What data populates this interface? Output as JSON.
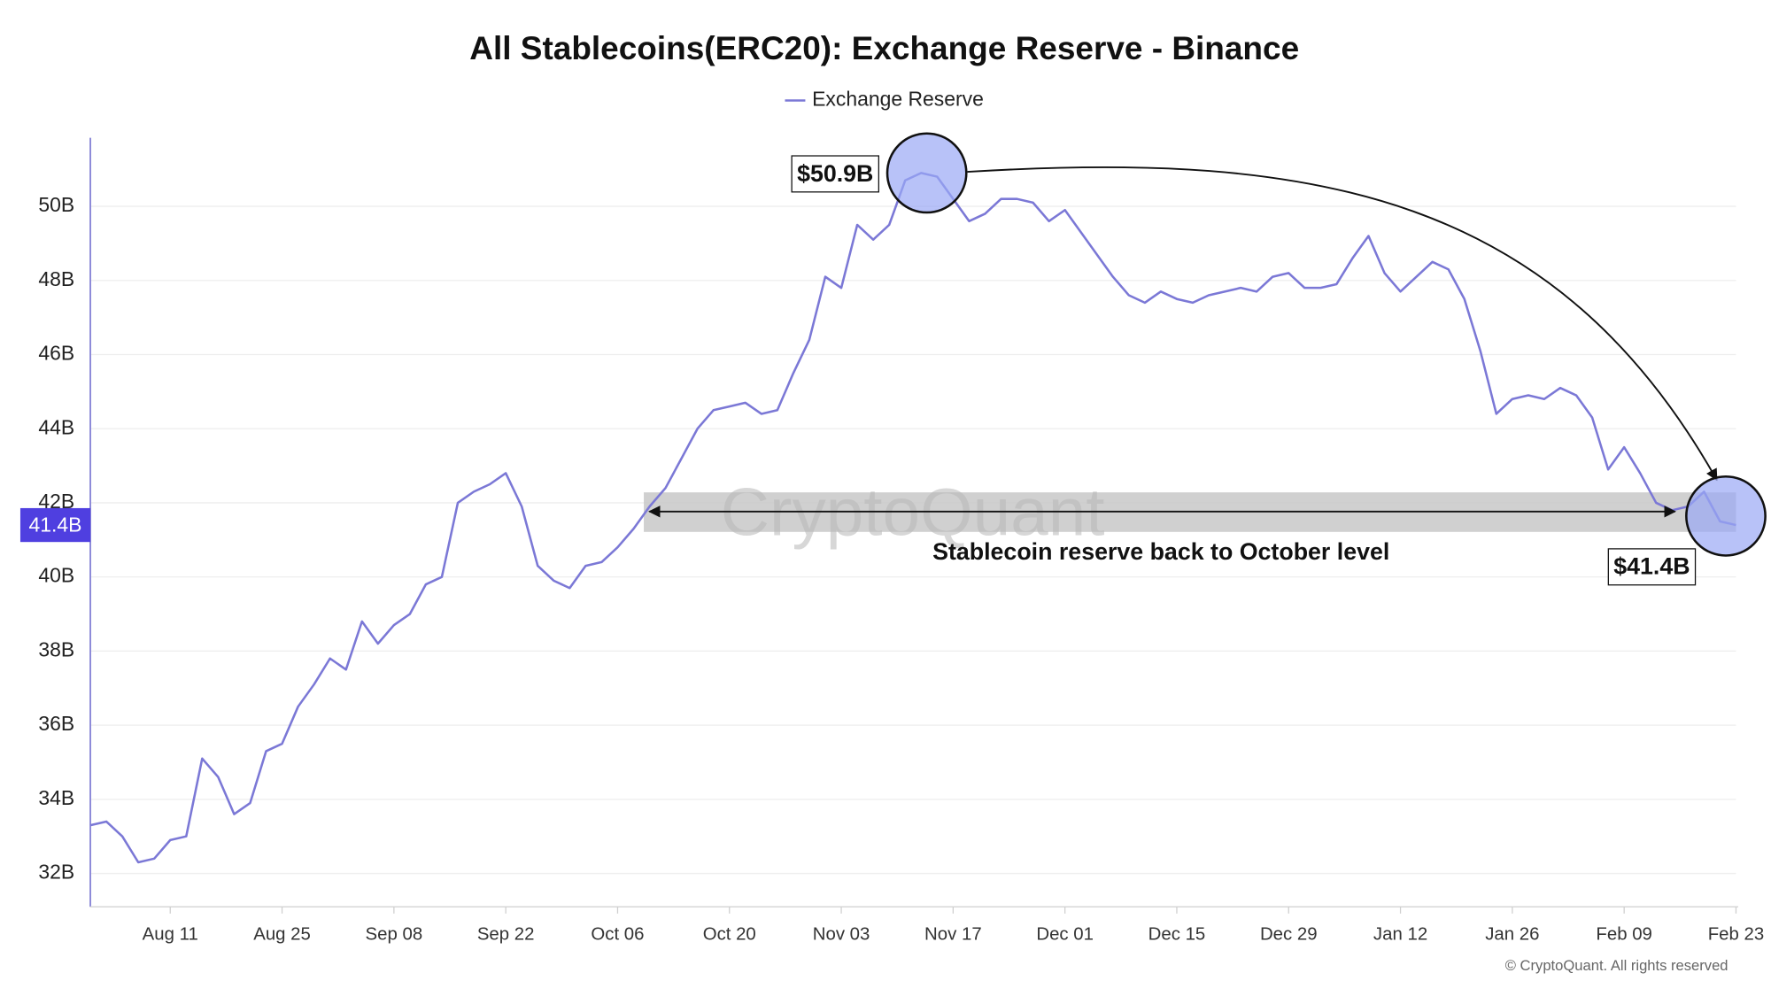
{
  "chart_data": {
    "type": "line",
    "title": "All Stablecoins(ERC20): Exchange Reserve - Binance",
    "categories": [
      null,
      null,
      null,
      null,
      null,
      "Aug 11",
      null,
      null,
      null,
      null,
      null,
      null,
      "Aug 25",
      null,
      null,
      null,
      null,
      null,
      null,
      "Sep 08",
      null,
      null,
      null,
      null,
      null,
      null,
      "Sep 22",
      null,
      null,
      null,
      null,
      null,
      null,
      "Oct 06",
      null,
      null,
      null,
      null,
      null,
      null,
      "Oct 20",
      null,
      null,
      null,
      null,
      null,
      null,
      "Nov 03",
      null,
      null,
      null,
      null,
      null,
      null,
      "Nov 17",
      null,
      null,
      null,
      null,
      null,
      null,
      "Dec 01",
      null,
      null,
      null,
      null,
      null,
      null,
      "Dec 15",
      null,
      null,
      null,
      null,
      null,
      null,
      "Dec 29",
      null,
      null,
      null,
      null,
      null,
      null,
      "Jan 12",
      null,
      null,
      null,
      null,
      null,
      null,
      "Jan 26",
      null,
      null,
      null,
      null,
      null,
      null,
      "Feb 09",
      null,
      null,
      null,
      null,
      null,
      null,
      "Feb 23"
    ],
    "series": [
      {
        "name": "Exchange Reserve",
        "color": "#7b78d6",
        "values": [
          33.3,
          33.4,
          33.0,
          32.3,
          32.4,
          32.9,
          33.0,
          35.1,
          34.6,
          33.6,
          33.9,
          35.3,
          35.5,
          36.5,
          37.1,
          37.8,
          37.5,
          38.8,
          38.2,
          38.7,
          39.0,
          39.8,
          40.0,
          42.0,
          42.3,
          42.5,
          42.8,
          41.9,
          40.3,
          39.9,
          39.7,
          40.3,
          40.4,
          40.8,
          41.3,
          41.9,
          42.4,
          43.2,
          44.0,
          44.5,
          44.6,
          44.7,
          44.4,
          44.5,
          45.5,
          46.4,
          48.1,
          47.8,
          49.5,
          49.1,
          49.5,
          50.7,
          50.9,
          50.8,
          50.2,
          49.6,
          49.8,
          50.2,
          50.2,
          50.1,
          49.6,
          49.9,
          49.3,
          48.7,
          48.1,
          47.6,
          47.4,
          47.7,
          47.5,
          47.4,
          47.6,
          47.7,
          47.8,
          47.7,
          48.1,
          48.2,
          47.8,
          47.8,
          47.9,
          48.6,
          49.2,
          48.2,
          47.7,
          48.1,
          48.5,
          48.3,
          47.5,
          46.1,
          44.4,
          44.8,
          44.9,
          44.8,
          45.1,
          44.9,
          44.3,
          42.9,
          43.5,
          42.8,
          42.0,
          41.8,
          41.9,
          42.3,
          41.5,
          41.4
        ]
      }
    ],
    "ylim": [
      31.1,
      51.85
    ],
    "yticks": [
      {
        "value": 32,
        "label": "32B"
      },
      {
        "value": 34,
        "label": "34B"
      },
      {
        "value": 36,
        "label": "36B"
      },
      {
        "value": 38,
        "label": "38B"
      },
      {
        "value": 40,
        "label": "40B"
      },
      {
        "value": 42,
        "label": "42B"
      },
      {
        "value": 44,
        "label": "44B"
      },
      {
        "value": 46,
        "label": "46B"
      },
      {
        "value": 48,
        "label": "48B"
      },
      {
        "value": 50,
        "label": "50B"
      }
    ],
    "grid": true,
    "current_value": {
      "value": 41.4,
      "label": "41.4B"
    },
    "annotations": {
      "peak": "$50.9B",
      "latest": "$41.4B",
      "note": "Stablecoin reserve back to October level"
    },
    "watermark": "CryptoQuant",
    "copyright": "© CryptoQuant. All rights reserved"
  }
}
